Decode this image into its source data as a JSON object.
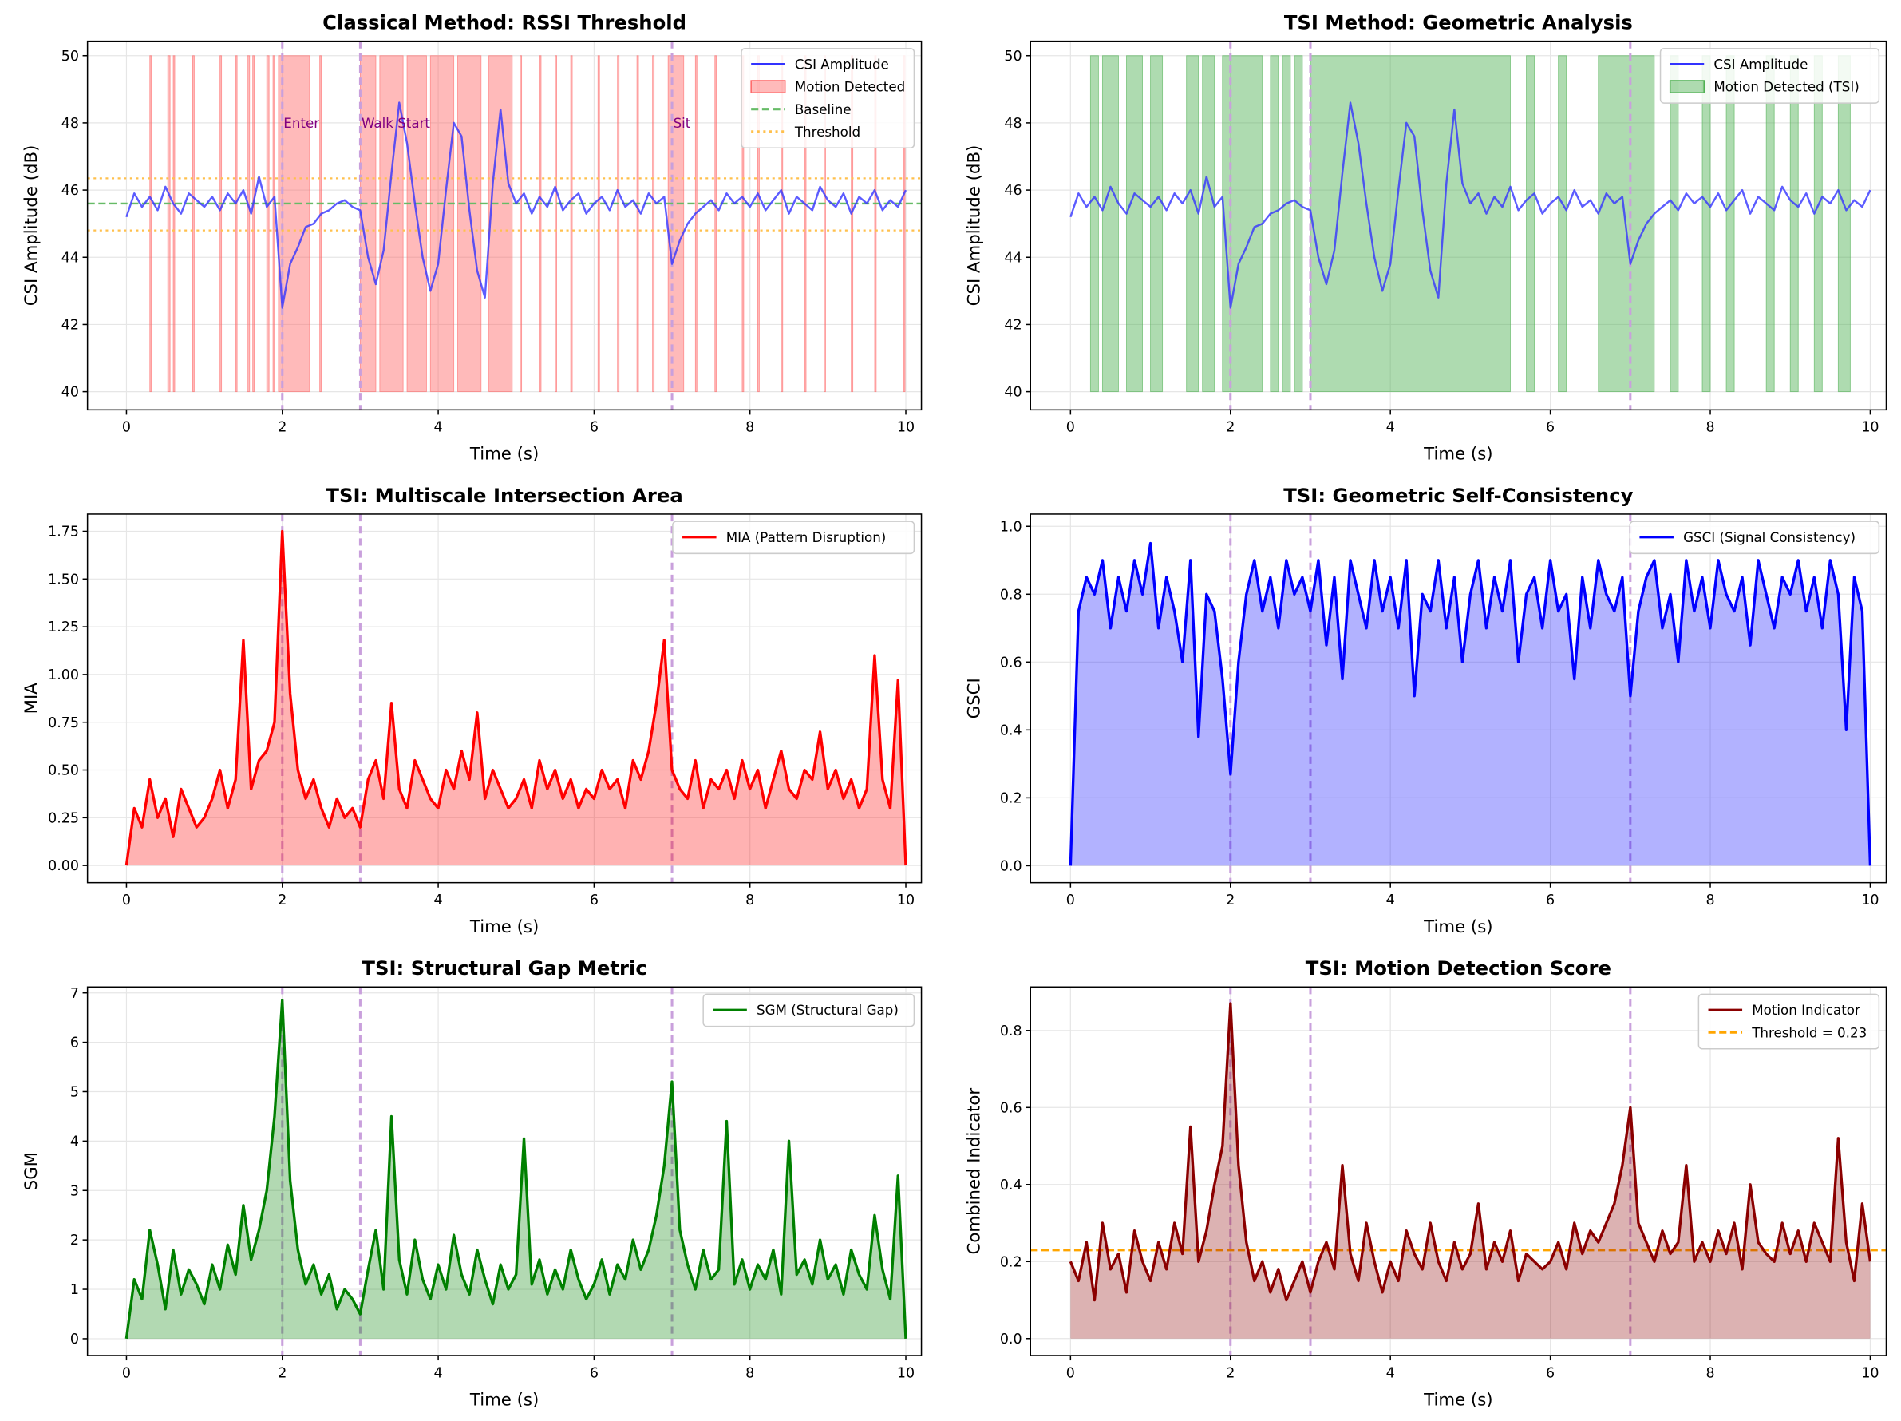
{
  "chart_data": [
    {
      "type": "line",
      "title": "Classical Method: RSSI Threshold",
      "xlabel": "Time (s)",
      "ylabel": "CSI Amplitude (dB)",
      "xlim": [
        -0.5,
        10.2
      ],
      "ylim": [
        39.46,
        50.43
      ],
      "xticks": [
        0,
        2,
        4,
        6,
        8,
        10
      ],
      "yticks": [
        40,
        42,
        44,
        46,
        48,
        50
      ],
      "grid": true,
      "legend_position": "top-right",
      "series": [
        {
          "name": "CSI Amplitude",
          "key": "csi",
          "color": "#3333ff"
        }
      ],
      "spans": {
        "name": "Motion Detected",
        "color": "#ff6666",
        "range": [
          40,
          50
        ],
        "intervals": [
          [
            0.3,
            0.32
          ],
          [
            0.53,
            0.56
          ],
          [
            0.6,
            0.62
          ],
          [
            0.85,
            0.87
          ],
          [
            1.2,
            1.22
          ],
          [
            1.4,
            1.42
          ],
          [
            1.55,
            1.58
          ],
          [
            1.62,
            1.64
          ],
          [
            1.8,
            1.83
          ],
          [
            1.88,
            1.9
          ],
          [
            1.95,
            2.35
          ],
          [
            2.48,
            2.5
          ],
          [
            3.0,
            3.2
          ],
          [
            3.25,
            3.55
          ],
          [
            3.6,
            3.85
          ],
          [
            3.9,
            4.2
          ],
          [
            4.25,
            4.55
          ],
          [
            4.65,
            4.95
          ],
          [
            5.05,
            5.07
          ],
          [
            5.3,
            5.32
          ],
          [
            5.5,
            5.52
          ],
          [
            5.7,
            5.72
          ],
          [
            6.05,
            6.07
          ],
          [
            6.3,
            6.32
          ],
          [
            6.55,
            6.57
          ],
          [
            6.75,
            6.77
          ],
          [
            6.95,
            7.15
          ],
          [
            7.3,
            7.32
          ],
          [
            7.55,
            7.57
          ],
          [
            7.9,
            7.92
          ],
          [
            8.1,
            8.12
          ],
          [
            8.4,
            8.42
          ],
          [
            8.7,
            8.72
          ],
          [
            8.95,
            8.97
          ],
          [
            9.3,
            9.32
          ],
          [
            9.6,
            9.62
          ],
          [
            9.97,
            9.99
          ]
        ]
      },
      "hlines": [
        {
          "name": "Baseline",
          "y": 45.6,
          "color": "#66bb66",
          "style": "dashed"
        },
        {
          "name": "Threshold",
          "y": 46.35,
          "color": "#ffc04d",
          "style": "dotted"
        },
        {
          "name": "",
          "y": 44.8,
          "color": "#ffc04d",
          "style": "dotted"
        }
      ],
      "annotations": [
        {
          "x": 2,
          "y": 48,
          "text": "Enter"
        },
        {
          "x": 3,
          "y": 48,
          "text": "Walk Start"
        },
        {
          "x": 7,
          "y": 48,
          "text": "Sit"
        }
      ],
      "legend": [
        {
          "label": "CSI Amplitude",
          "kind": "line",
          "color": "#3333ff"
        },
        {
          "label": "Motion Detected",
          "kind": "patch",
          "color": "#ff6666"
        },
        {
          "label": "Baseline",
          "kind": "dashed",
          "color": "#66bb66"
        },
        {
          "label": "Threshold",
          "kind": "dotted",
          "color": "#ffc04d"
        }
      ]
    },
    {
      "type": "line",
      "title": "TSI Method: Geometric Analysis",
      "xlabel": "Time (s)",
      "ylabel": "CSI Amplitude (dB)",
      "xlim": [
        -0.5,
        10.2
      ],
      "ylim": [
        39.46,
        50.43
      ],
      "xticks": [
        0,
        2,
        4,
        6,
        8,
        10
      ],
      "yticks": [
        40,
        42,
        44,
        46,
        48,
        50
      ],
      "grid": true,
      "legend_position": "top-right",
      "series": [
        {
          "name": "CSI Amplitude",
          "key": "csi",
          "color": "#3333ff"
        }
      ],
      "spans": {
        "name": "Motion Detected (TSI)",
        "color": "#4caf50",
        "range": [
          40,
          50
        ],
        "intervals": [
          [
            0.25,
            0.35
          ],
          [
            0.4,
            0.6
          ],
          [
            0.7,
            0.9
          ],
          [
            1.0,
            1.15
          ],
          [
            1.45,
            1.6
          ],
          [
            1.65,
            1.8
          ],
          [
            1.9,
            2.4
          ],
          [
            2.5,
            2.6
          ],
          [
            2.65,
            2.75
          ],
          [
            2.8,
            2.9
          ],
          [
            3.0,
            5.5
          ],
          [
            5.7,
            5.8
          ],
          [
            6.1,
            6.2
          ],
          [
            6.6,
            7.3
          ],
          [
            7.5,
            7.6
          ],
          [
            7.9,
            8.0
          ],
          [
            8.2,
            8.3
          ],
          [
            8.7,
            8.8
          ],
          [
            9.0,
            9.1
          ],
          [
            9.3,
            9.4
          ],
          [
            9.6,
            9.75
          ]
        ]
      },
      "hlines": [],
      "annotations": [],
      "legend": [
        {
          "label": "CSI Amplitude",
          "kind": "line",
          "color": "#3333ff"
        },
        {
          "label": "Motion Detected (TSI)",
          "kind": "patch",
          "color": "#4caf50"
        }
      ]
    },
    {
      "type": "area",
      "title": "TSI: Multiscale Intersection Area",
      "xlabel": "Time (s)",
      "ylabel": "MIA",
      "xlim": [
        -0.5,
        10.2
      ],
      "ylim": [
        -0.09,
        1.84
      ],
      "xticks": [
        0,
        2,
        4,
        6,
        8,
        10
      ],
      "yticks": [
        0.0,
        0.25,
        0.5,
        0.75,
        1.0,
        1.25,
        1.5,
        1.75
      ],
      "ytick_decimals": 2,
      "grid": true,
      "legend_position": "top-right",
      "series": [
        {
          "name": "MIA (Pattern Disruption)",
          "key": "mia",
          "color": "#ff0000",
          "fill": true
        }
      ],
      "hlines": [],
      "annotations": [],
      "legend": [
        {
          "label": "MIA (Pattern Disruption)",
          "kind": "line",
          "color": "#ff0000"
        }
      ]
    },
    {
      "type": "area",
      "title": "TSI: Geometric Self-Consistency",
      "xlabel": "Time (s)",
      "ylabel": "GSCI",
      "xlim": [
        -0.5,
        10.2
      ],
      "ylim": [
        -0.05,
        1.036
      ],
      "xticks": [
        0,
        2,
        4,
        6,
        8,
        10
      ],
      "yticks": [
        0.0,
        0.2,
        0.4,
        0.6,
        0.8,
        1.0
      ],
      "ytick_decimals": 1,
      "grid": true,
      "legend_position": "top-right",
      "series": [
        {
          "name": "GSCI (Signal Consistency)",
          "key": "gsci",
          "color": "#0000ff",
          "fill": true
        }
      ],
      "hlines": [],
      "annotations": [],
      "legend": [
        {
          "label": "GSCI (Signal Consistency)",
          "kind": "line",
          "color": "#0000ff"
        }
      ]
    },
    {
      "type": "area",
      "title": "TSI: Structural Gap Metric",
      "xlabel": "Time (s)",
      "ylabel": "SGM",
      "xlim": [
        -0.5,
        10.2
      ],
      "ylim": [
        -0.34,
        7.12
      ],
      "xticks": [
        0,
        2,
        4,
        6,
        8,
        10
      ],
      "yticks": [
        0,
        1,
        2,
        3,
        4,
        5,
        6,
        7
      ],
      "grid": true,
      "legend_position": "top-right",
      "series": [
        {
          "name": "SGM (Structural Gap)",
          "key": "sgm",
          "color": "#008000",
          "fill": true
        }
      ],
      "hlines": [],
      "annotations": [],
      "legend": [
        {
          "label": "SGM (Structural Gap)",
          "kind": "line",
          "color": "#008000"
        }
      ]
    },
    {
      "type": "area",
      "title": "TSI: Motion Detection Score",
      "xlabel": "Time (s)",
      "ylabel": "Combined Indicator",
      "xlim": [
        -0.5,
        10.2
      ],
      "ylim": [
        -0.044,
        0.913
      ],
      "xticks": [
        0,
        2,
        4,
        6,
        8,
        10
      ],
      "yticks": [
        0.0,
        0.2,
        0.4,
        0.6,
        0.8
      ],
      "ytick_decimals": 1,
      "grid": true,
      "legend_position": "top-right",
      "series": [
        {
          "name": "Motion Indicator",
          "key": "motion",
          "color": "#8b0000",
          "fill": true
        }
      ],
      "hlines": [
        {
          "name": "Threshold = 0.23",
          "y": 0.23,
          "color": "#ffa500",
          "style": "dashed",
          "full": true
        }
      ],
      "annotations": [],
      "legend": [
        {
          "label": "Motion Indicator",
          "kind": "line",
          "color": "#8b0000"
        },
        {
          "label": "Threshold = 0.23",
          "kind": "dashed",
          "color": "#ffa500"
        }
      ]
    }
  ],
  "events": {
    "times": [
      2,
      3,
      7
    ],
    "color": "#c9a0dc"
  },
  "signals": {
    "t_start": 0,
    "t_step": 0.1,
    "csi": [
      45.2,
      45.9,
      45.5,
      45.8,
      45.4,
      46.1,
      45.6,
      45.3,
      45.9,
      45.7,
      45.5,
      45.8,
      45.4,
      45.9,
      45.6,
      46.0,
      45.3,
      46.4,
      45.5,
      45.8,
      42.5,
      43.8,
      44.3,
      44.9,
      45.0,
      45.3,
      45.4,
      45.6,
      45.7,
      45.5,
      45.4,
      44.0,
      43.2,
      44.2,
      46.5,
      48.6,
      47.4,
      45.6,
      44.0,
      43.0,
      43.8,
      46.0,
      48.0,
      47.6,
      45.4,
      43.6,
      42.8,
      46.2,
      48.4,
      46.2,
      45.6,
      45.9,
      45.3,
      45.8,
      45.5,
      46.1,
      45.4,
      45.7,
      45.9,
      45.3,
      45.6,
      45.8,
      45.4,
      46.0,
      45.5,
      45.7,
      45.3,
      45.9,
      45.6,
      45.8,
      43.8,
      44.5,
      45.0,
      45.3,
      45.5,
      45.7,
      45.4,
      45.9,
      45.6,
      45.8,
      45.5,
      45.9,
      45.4,
      45.7,
      46.0,
      45.3,
      45.8,
      45.6,
      45.4,
      46.1,
      45.7,
      45.5,
      45.9,
      45.3,
      45.8,
      45.6,
      46.0,
      45.4,
      45.7,
      45.5,
      46.0
    ],
    "mia": [
      0,
      0.3,
      0.2,
      0.45,
      0.25,
      0.35,
      0.15,
      0.4,
      0.3,
      0.2,
      0.25,
      0.35,
      0.5,
      0.3,
      0.45,
      1.18,
      0.4,
      0.55,
      0.6,
      0.75,
      1.75,
      0.9,
      0.5,
      0.35,
      0.45,
      0.3,
      0.2,
      0.35,
      0.25,
      0.3,
      0.2,
      0.45,
      0.55,
      0.35,
      0.85,
      0.4,
      0.3,
      0.55,
      0.45,
      0.35,
      0.3,
      0.5,
      0.4,
      0.6,
      0.45,
      0.8,
      0.35,
      0.5,
      0.4,
      0.3,
      0.35,
      0.45,
      0.3,
      0.55,
      0.4,
      0.5,
      0.35,
      0.45,
      0.3,
      0.4,
      0.35,
      0.5,
      0.4,
      0.45,
      0.3,
      0.55,
      0.45,
      0.6,
      0.85,
      1.18,
      0.5,
      0.4,
      0.35,
      0.55,
      0.3,
      0.45,
      0.4,
      0.5,
      0.35,
      0.55,
      0.4,
      0.5,
      0.3,
      0.45,
      0.6,
      0.4,
      0.35,
      0.5,
      0.45,
      0.7,
      0.4,
      0.5,
      0.35,
      0.45,
      0.3,
      0.4,
      1.1,
      0.45,
      0.3,
      0.97,
      0
    ],
    "gsci": [
      0,
      0.75,
      0.85,
      0.8,
      0.9,
      0.7,
      0.85,
      0.75,
      0.9,
      0.8,
      0.95,
      0.7,
      0.85,
      0.75,
      0.6,
      0.9,
      0.38,
      0.8,
      0.75,
      0.55,
      0.27,
      0.6,
      0.8,
      0.9,
      0.75,
      0.85,
      0.7,
      0.9,
      0.8,
      0.85,
      0.75,
      0.9,
      0.65,
      0.85,
      0.55,
      0.9,
      0.8,
      0.7,
      0.9,
      0.75,
      0.85,
      0.7,
      0.9,
      0.5,
      0.8,
      0.75,
      0.9,
      0.7,
      0.85,
      0.6,
      0.8,
      0.9,
      0.7,
      0.85,
      0.75,
      0.9,
      0.6,
      0.8,
      0.85,
      0.7,
      0.9,
      0.75,
      0.8,
      0.55,
      0.85,
      0.7,
      0.9,
      0.8,
      0.75,
      0.85,
      0.5,
      0.75,
      0.85,
      0.9,
      0.7,
      0.8,
      0.6,
      0.9,
      0.75,
      0.85,
      0.7,
      0.9,
      0.8,
      0.75,
      0.85,
      0.65,
      0.9,
      0.8,
      0.7,
      0.85,
      0.8,
      0.9,
      0.75,
      0.85,
      0.7,
      0.9,
      0.8,
      0.4,
      0.85,
      0.75,
      0
    ],
    "sgm": [
      0,
      1.2,
      0.8,
      2.2,
      1.5,
      0.6,
      1.8,
      0.9,
      1.4,
      1.1,
      0.7,
      1.5,
      1.0,
      1.9,
      1.3,
      2.7,
      1.6,
      2.2,
      3.0,
      4.5,
      6.85,
      3.2,
      1.8,
      1.1,
      1.5,
      0.9,
      1.3,
      0.6,
      1.0,
      0.8,
      0.5,
      1.4,
      2.2,
      1.0,
      4.5,
      1.6,
      0.9,
      2.0,
      1.2,
      0.8,
      1.5,
      1.0,
      2.1,
      1.3,
      0.9,
      1.8,
      1.2,
      0.7,
      1.5,
      1.0,
      1.3,
      4.05,
      1.1,
      1.6,
      0.9,
      1.4,
      1.0,
      1.8,
      1.2,
      0.8,
      1.1,
      1.6,
      0.9,
      1.5,
      1.2,
      2.0,
      1.4,
      1.8,
      2.5,
      3.5,
      5.2,
      2.2,
      1.5,
      1.0,
      1.8,
      1.2,
      1.4,
      4.4,
      1.1,
      1.6,
      1.0,
      1.5,
      1.2,
      1.8,
      0.9,
      4.0,
      1.3,
      1.6,
      1.1,
      2.0,
      1.2,
      1.5,
      0.9,
      1.8,
      1.3,
      1.0,
      2.5,
      1.4,
      0.8,
      3.3,
      0
    ],
    "motion": [
      0.2,
      0.15,
      0.25,
      0.1,
      0.3,
      0.18,
      0.22,
      0.12,
      0.28,
      0.2,
      0.15,
      0.25,
      0.18,
      0.3,
      0.22,
      0.55,
      0.2,
      0.28,
      0.4,
      0.5,
      0.87,
      0.45,
      0.25,
      0.15,
      0.2,
      0.12,
      0.18,
      0.1,
      0.15,
      0.2,
      0.12,
      0.2,
      0.25,
      0.18,
      0.45,
      0.22,
      0.15,
      0.3,
      0.2,
      0.12,
      0.2,
      0.15,
      0.28,
      0.22,
      0.18,
      0.3,
      0.2,
      0.15,
      0.25,
      0.18,
      0.22,
      0.35,
      0.18,
      0.25,
      0.2,
      0.28,
      0.15,
      0.22,
      0.2,
      0.18,
      0.2,
      0.25,
      0.18,
      0.3,
      0.22,
      0.28,
      0.25,
      0.3,
      0.35,
      0.45,
      0.6,
      0.3,
      0.25,
      0.2,
      0.28,
      0.22,
      0.25,
      0.45,
      0.2,
      0.25,
      0.2,
      0.28,
      0.22,
      0.3,
      0.18,
      0.4,
      0.25,
      0.22,
      0.2,
      0.3,
      0.22,
      0.28,
      0.2,
      0.3,
      0.25,
      0.2,
      0.52,
      0.25,
      0.15,
      0.35,
      0.2
    ]
  }
}
